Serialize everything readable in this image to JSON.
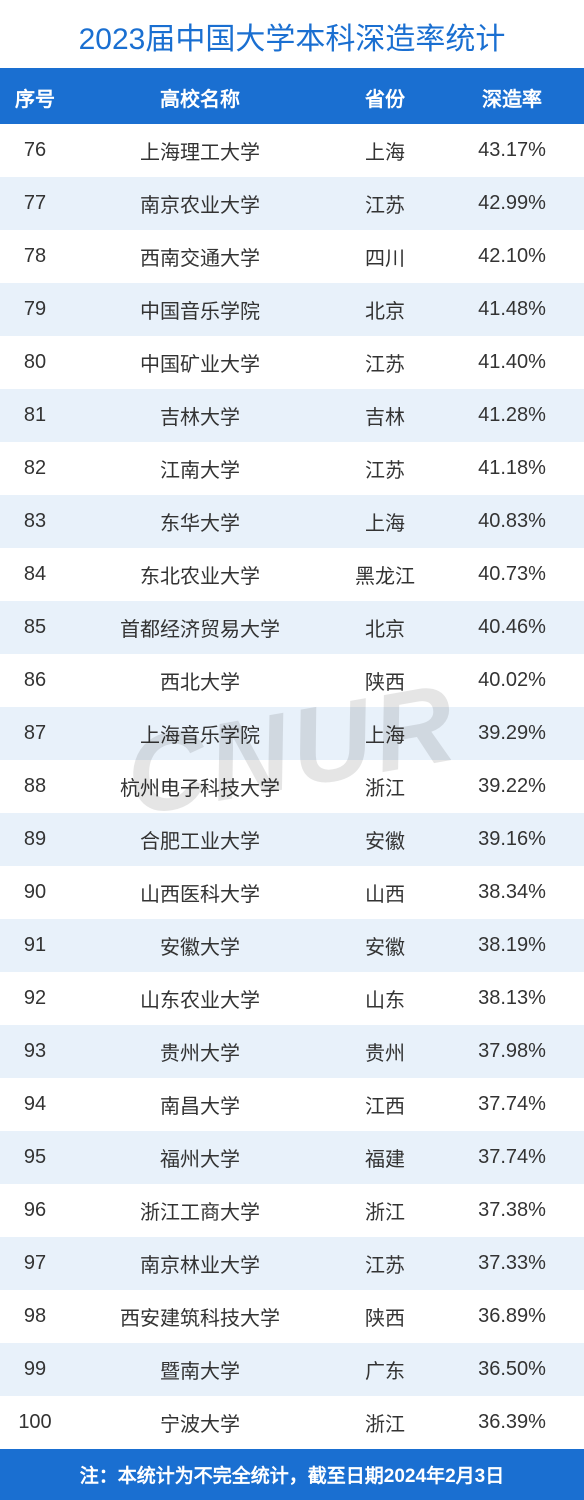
{
  "title": "2023届中国大学本科深造率统计",
  "colors": {
    "primary": "#1a6fd1",
    "title_text": "#1a6fd1",
    "header_bg": "#1a6fd1",
    "header_text": "#ffffff",
    "row_even_bg": "#ffffff",
    "row_odd_bg": "#e8f1fa",
    "footer_bg": "#1a6fd1",
    "footer_text": "#ffffff",
    "cell_text": "#333333",
    "watermark": "rgba(0,0,0,0.10)"
  },
  "columns": [
    "序号",
    "高校名称",
    "省份",
    "深造率"
  ],
  "rows": [
    [
      "76",
      "上海理工大学",
      "上海",
      "43.17%"
    ],
    [
      "77",
      "南京农业大学",
      "江苏",
      "42.99%"
    ],
    [
      "78",
      "西南交通大学",
      "四川",
      "42.10%"
    ],
    [
      "79",
      "中国音乐学院",
      "北京",
      "41.48%"
    ],
    [
      "80",
      "中国矿业大学",
      "江苏",
      "41.40%"
    ],
    [
      "81",
      "吉林大学",
      "吉林",
      "41.28%"
    ],
    [
      "82",
      "江南大学",
      "江苏",
      "41.18%"
    ],
    [
      "83",
      "东华大学",
      "上海",
      "40.83%"
    ],
    [
      "84",
      "东北农业大学",
      "黑龙江",
      "40.73%"
    ],
    [
      "85",
      "首都经济贸易大学",
      "北京",
      "40.46%"
    ],
    [
      "86",
      "西北大学",
      "陕西",
      "40.02%"
    ],
    [
      "87",
      "上海音乐学院",
      "上海",
      "39.29%"
    ],
    [
      "88",
      "杭州电子科技大学",
      "浙江",
      "39.22%"
    ],
    [
      "89",
      "合肥工业大学",
      "安徽",
      "39.16%"
    ],
    [
      "90",
      "山西医科大学",
      "山西",
      "38.34%"
    ],
    [
      "91",
      "安徽大学",
      "安徽",
      "38.19%"
    ],
    [
      "92",
      "山东农业大学",
      "山东",
      "38.13%"
    ],
    [
      "93",
      "贵州大学",
      "贵州",
      "37.98%"
    ],
    [
      "94",
      "南昌大学",
      "江西",
      "37.74%"
    ],
    [
      "95",
      "福州大学",
      "福建",
      "37.74%"
    ],
    [
      "96",
      "浙江工商大学",
      "浙江",
      "37.38%"
    ],
    [
      "97",
      "南京林业大学",
      "江苏",
      "37.33%"
    ],
    [
      "98",
      "西安建筑科技大学",
      "陕西",
      "36.89%"
    ],
    [
      "99",
      "暨南大学",
      "广东",
      "36.50%"
    ],
    [
      "100",
      "宁波大学",
      "浙江",
      "36.39%"
    ]
  ],
  "footer_note": "注：本统计为不完全统计，截至日期2024年2月3日",
  "watermark": "CNUR"
}
